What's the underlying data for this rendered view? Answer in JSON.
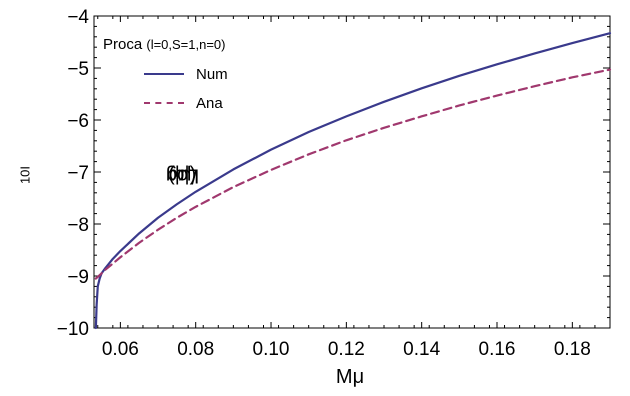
{
  "chart_data": {
    "type": "line",
    "title": "",
    "xlabel": "Mμ",
    "ylabel": "Log10(|ωI/μ|)",
    "ylabel_parts": {
      "prefix": "Log",
      "sub1": "10",
      "mid": "(|ω",
      "sub2": "I",
      "suffix": "/μ|)"
    },
    "xlim": [
      0.053,
      0.19
    ],
    "ylim": [
      -10,
      -4
    ],
    "xticks": [
      0.06,
      0.08,
      0.1,
      0.12,
      0.14,
      0.16,
      0.18
    ],
    "xtick_labels": [
      "0.06",
      "0.08",
      "0.10",
      "0.12",
      "0.14",
      "0.16",
      "0.18"
    ],
    "yticks": [
      -10,
      -9,
      -8,
      -7,
      -6,
      -5,
      -4
    ],
    "ytick_labels": [
      "−10",
      "−9",
      "−8",
      "−7",
      "−6",
      "−5",
      "−4"
    ],
    "grid": false,
    "legend": {
      "placement": "top-left",
      "title": "Proca",
      "title_detail": "(l=0,S=1,n=0)"
    },
    "series": [
      {
        "name": "Num",
        "color": "#3a3a8c",
        "style": "solid",
        "x": [
          0.0535,
          0.0537,
          0.054,
          0.0545,
          0.055,
          0.056,
          0.058,
          0.06,
          0.065,
          0.07,
          0.075,
          0.08,
          0.09,
          0.1,
          0.11,
          0.12,
          0.13,
          0.14,
          0.15,
          0.16,
          0.17,
          0.18,
          0.19
        ],
        "y": [
          -10.0,
          -9.55,
          -9.2,
          -9.05,
          -8.95,
          -8.85,
          -8.67,
          -8.52,
          -8.18,
          -7.88,
          -7.62,
          -7.38,
          -6.95,
          -6.57,
          -6.23,
          -5.93,
          -5.65,
          -5.39,
          -5.15,
          -4.93,
          -4.72,
          -4.52,
          -4.33
        ]
      },
      {
        "name": "Ana",
        "color": "#a0386e",
        "style": "dashed",
        "x": [
          0.0535,
          0.055,
          0.056,
          0.058,
          0.06,
          0.065,
          0.07,
          0.075,
          0.08,
          0.09,
          0.1,
          0.11,
          0.12,
          0.13,
          0.14,
          0.15,
          0.16,
          0.17,
          0.18,
          0.19
        ],
        "y": [
          -9.05,
          -8.95,
          -8.88,
          -8.76,
          -8.64,
          -8.36,
          -8.11,
          -7.88,
          -7.67,
          -7.29,
          -6.96,
          -6.66,
          -6.39,
          -6.15,
          -5.93,
          -5.72,
          -5.53,
          -5.35,
          -5.18,
          -5.03
        ]
      }
    ]
  }
}
